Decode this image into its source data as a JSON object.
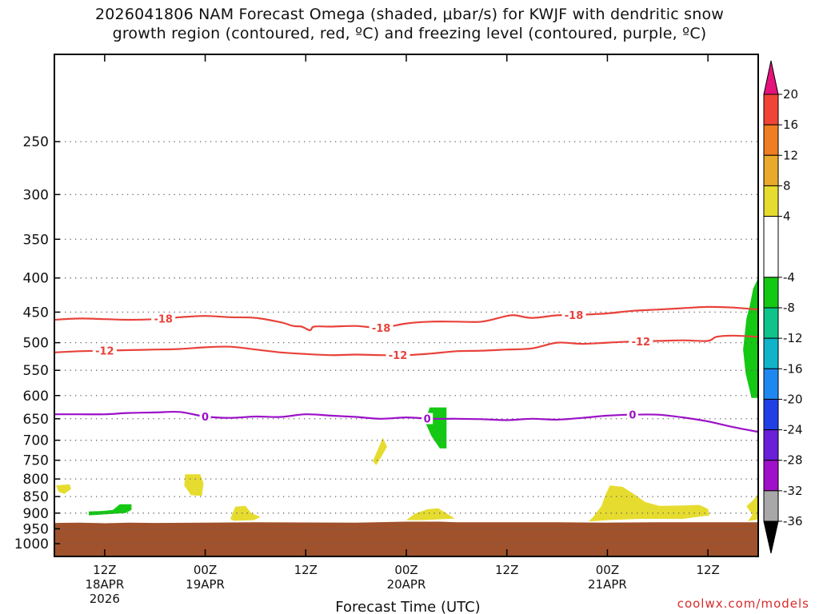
{
  "title": {
    "line1": "2026041806 NAM Forecast Omega (shaded, μbar/s) for KWJF with dendritic snow",
    "line2": "growth region (contoured, red, ºC) and freezing level (contoured, purple, ºC)"
  },
  "credit": "coolwx.com/models",
  "colors": {
    "ground": "#a0522d",
    "dgz_contour": "#e8423b",
    "freezing_contour": "#9b10c8",
    "yellow_fill": "#e6dc2f",
    "green_fill": "#14c814",
    "grid": "#666666"
  },
  "chart_data": {
    "type": "time-height",
    "xlabel": "Forecast Time (UTC)",
    "x_range_hours": [
      0,
      84
    ],
    "y_axis": {
      "type": "pressure",
      "units": "hPa",
      "range": [
        1045,
        185
      ],
      "ticks": [
        "250",
        "300",
        "350",
        "400",
        "450",
        "500",
        "550",
        "600",
        "650",
        "700",
        "750",
        "800",
        "850",
        "900",
        "950",
        "1000"
      ],
      "tick_values": [
        250,
        300,
        350,
        400,
        450,
        500,
        550,
        600,
        650,
        700,
        750,
        800,
        850,
        900,
        950,
        1000
      ]
    },
    "x_ticks": [
      {
        "hour": 6,
        "label": "12Z",
        "date": "18APR",
        "year": "2026"
      },
      {
        "hour": 18,
        "label": "00Z",
        "date": "19APR",
        "year": ""
      },
      {
        "hour": 30,
        "label": "12Z",
        "date": "",
        "year": ""
      },
      {
        "hour": 42,
        "label": "00Z",
        "date": "20APR",
        "year": ""
      },
      {
        "hour": 54,
        "label": "12Z",
        "date": "",
        "year": ""
      },
      {
        "hour": 66,
        "label": "00Z",
        "date": "21APR",
        "year": ""
      },
      {
        "hour": 78,
        "label": "12Z",
        "date": "",
        "year": ""
      }
    ],
    "colorbar": {
      "units": "μbar/s",
      "labels": [
        "20",
        "16",
        "12",
        "8",
        "4",
        "-4",
        "-8",
        "-12",
        "-16",
        "-20",
        "-24",
        "-28",
        "-32",
        "-36"
      ],
      "bins": [
        {
          "lo": 20,
          "hi": 99,
          "color": "#e6127b",
          "shape": "triangle-up"
        },
        {
          "lo": 16,
          "hi": 20,
          "color": "#f04436"
        },
        {
          "lo": 12,
          "hi": 16,
          "color": "#ef7d21"
        },
        {
          "lo": 8,
          "hi": 12,
          "color": "#e9a92a"
        },
        {
          "lo": 4,
          "hi": 8,
          "color": "#e6dc2f"
        },
        {
          "lo": -4,
          "hi": 4,
          "color": "#ffffff"
        },
        {
          "lo": -8,
          "hi": -4,
          "color": "#14c814"
        },
        {
          "lo": -12,
          "hi": -8,
          "color": "#0ec48a"
        },
        {
          "lo": -16,
          "hi": -12,
          "color": "#10b4c8"
        },
        {
          "lo": -20,
          "hi": -16,
          "color": "#1f88f0"
        },
        {
          "lo": -24,
          "hi": -20,
          "color": "#2040e6"
        },
        {
          "lo": -28,
          "hi": -24,
          "color": "#6a1fd8"
        },
        {
          "lo": -32,
          "hi": -28,
          "color": "#a010c8"
        },
        {
          "lo": -36,
          "hi": -32,
          "color": "#a8a8a8"
        },
        {
          "lo": -99,
          "hi": -36,
          "color": "#000000",
          "shape": "triangle-down"
        }
      ]
    },
    "contours": [
      {
        "name": "dgz-minus-18",
        "level": -18,
        "label": "-18",
        "color": "#e8423b",
        "hours": [
          0,
          3,
          6,
          9,
          12,
          15,
          18,
          21,
          24,
          27,
          28.5,
          29.5,
          30.5,
          31,
          33,
          36,
          39,
          42,
          45,
          48,
          51,
          54,
          55,
          57,
          60,
          63,
          66,
          69,
          72,
          75,
          78,
          81,
          84
        ],
        "pressure": [
          462,
          460,
          461,
          462,
          461,
          458,
          456,
          458,
          459,
          466,
          472,
          473,
          479,
          473,
          473,
          472,
          475,
          468,
          465,
          465,
          465,
          456,
          455,
          459,
          455,
          454,
          452,
          448,
          446,
          444,
          442,
          443,
          446
        ],
        "label_hours": [
          13,
          39,
          62
        ]
      },
      {
        "name": "dgz-minus-12",
        "level": -12,
        "label": "-12",
        "color": "#e8423b",
        "hours": [
          0,
          3,
          6,
          9,
          12,
          15,
          18,
          21,
          24,
          27,
          30,
          33,
          36,
          39,
          42,
          45,
          48,
          51,
          54,
          57,
          60,
          63,
          66,
          69,
          72,
          75,
          78,
          79,
          81,
          84
        ],
        "pressure": [
          517,
          515,
          514,
          513,
          512,
          511,
          508,
          507,
          512,
          517,
          520,
          522,
          521,
          522,
          522,
          519,
          515,
          514,
          512,
          510,
          500,
          502,
          500,
          498,
          497,
          496,
          497,
          490,
          488,
          490
        ],
        "label_hours": [
          6,
          41,
          70
        ]
      },
      {
        "name": "freezing-level",
        "level": 0,
        "label": "0",
        "color": "#9b10c8",
        "hours": [
          0,
          3,
          6,
          9,
          12,
          15,
          18,
          21,
          24,
          27,
          30,
          33,
          36,
          39,
          42,
          45,
          48,
          51,
          54,
          57,
          60,
          63,
          66,
          69,
          72,
          75,
          78,
          81,
          84
        ],
        "pressure": [
          640,
          640,
          640,
          637,
          636,
          635,
          645,
          648,
          645,
          646,
          640,
          643,
          646,
          650,
          647,
          650,
          650,
          651,
          653,
          650,
          652,
          648,
          643,
          641,
          641,
          647,
          656,
          669,
          680
        ],
        "label_hours": [
          18,
          44.5,
          69
        ]
      }
    ],
    "omega_regions": [
      {
        "name": "yellow-blob-1",
        "class": 4,
        "color": "#e6dc2f",
        "points": [
          [
            0.2,
            818
          ],
          [
            1.8,
            815
          ],
          [
            2.0,
            828
          ],
          [
            1.2,
            842
          ],
          [
            0.5,
            836
          ]
        ]
      },
      {
        "name": "yellow-blob-2",
        "class": 4,
        "color": "#e6dc2f",
        "points": [
          [
            15.6,
            787
          ],
          [
            17.4,
            787
          ],
          [
            17.8,
            812
          ],
          [
            17.6,
            848
          ],
          [
            16.3,
            846
          ],
          [
            15.5,
            818
          ]
        ]
      },
      {
        "name": "yellow-blob-3",
        "class": 4,
        "color": "#e6dc2f",
        "points": [
          [
            21.0,
            918
          ],
          [
            21.6,
            880
          ],
          [
            22.8,
            878
          ],
          [
            23.5,
            900
          ],
          [
            24.6,
            912
          ],
          [
            23.8,
            922
          ],
          [
            21.4,
            924
          ]
        ]
      },
      {
        "name": "yellow-blob-4",
        "class": 4,
        "color": "#e6dc2f",
        "points": [
          [
            38.0,
            752
          ],
          [
            38.7,
            718
          ],
          [
            39.2,
            694
          ],
          [
            39.7,
            716
          ],
          [
            39.0,
            742
          ],
          [
            38.4,
            763
          ]
        ]
      },
      {
        "name": "yellow-blob-5",
        "class": 4,
        "color": "#e6dc2f",
        "points": [
          [
            42.0,
            922
          ],
          [
            43.0,
            902
          ],
          [
            44.5,
            888
          ],
          [
            45.8,
            885
          ],
          [
            47.0,
            904
          ],
          [
            47.8,
            917
          ],
          [
            44.0,
            922
          ]
        ]
      },
      {
        "name": "yellow-blob-6",
        "class": 4,
        "color": "#e6dc2f",
        "points": [
          [
            63.8,
            925
          ],
          [
            64.3,
            912
          ],
          [
            65.3,
            878
          ],
          [
            65.8,
            843
          ],
          [
            66.3,
            818
          ],
          [
            67.8,
            822
          ],
          [
            69.3,
            845
          ],
          [
            70.5,
            866
          ],
          [
            72.2,
            878
          ],
          [
            74.5,
            877
          ],
          [
            77.0,
            875
          ],
          [
            78.0,
            887
          ],
          [
            78.2,
            907
          ],
          [
            75.0,
            918
          ],
          [
            70.0,
            918
          ],
          [
            66.0,
            922
          ],
          [
            64.0,
            926
          ]
        ]
      },
      {
        "name": "yellow-blob-7",
        "class": 4,
        "color": "#e6dc2f",
        "points": [
          [
            82.6,
            879
          ],
          [
            83.5,
            858
          ],
          [
            84.0,
            840
          ],
          [
            84.0,
            920
          ],
          [
            82.8,
            925
          ],
          [
            83.3,
            905
          ]
        ]
      },
      {
        "name": "green-blob-1",
        "class": -8,
        "color": "#14c814",
        "points": [
          [
            4.1,
            895
          ],
          [
            5.9,
            893
          ],
          [
            7.0,
            890
          ],
          [
            7.8,
            873
          ],
          [
            9.2,
            873
          ],
          [
            9.2,
            890
          ],
          [
            8.5,
            900
          ],
          [
            4.1,
            907
          ]
        ]
      },
      {
        "name": "green-blob-2",
        "class": -8,
        "color": "#14c814",
        "points": [
          [
            44.8,
            625
          ],
          [
            46.8,
            625
          ],
          [
            46.8,
            720
          ],
          [
            46.0,
            720
          ],
          [
            45.0,
            690
          ],
          [
            44.3,
            660
          ],
          [
            44.5,
            640
          ]
        ]
      },
      {
        "name": "green-blob-3",
        "class": -8,
        "color": "#14c814",
        "points": [
          [
            83.4,
            415
          ],
          [
            84.0,
            400
          ],
          [
            84.0,
            605
          ],
          [
            83.2,
            605
          ],
          [
            82.5,
            556
          ],
          [
            82.2,
            512
          ],
          [
            82.6,
            460
          ],
          [
            83.0,
            440
          ]
        ]
      }
    ],
    "terrain_pressure_hours": [
      0,
      3,
      6,
      9,
      12,
      18,
      24,
      36,
      42,
      46,
      48,
      60,
      66,
      72,
      80,
      84
    ],
    "terrain_pressure": [
      931,
      930,
      932,
      930,
      931,
      930,
      929,
      930,
      927,
      927,
      929,
      929,
      930,
      929,
      929,
      929
    ]
  }
}
